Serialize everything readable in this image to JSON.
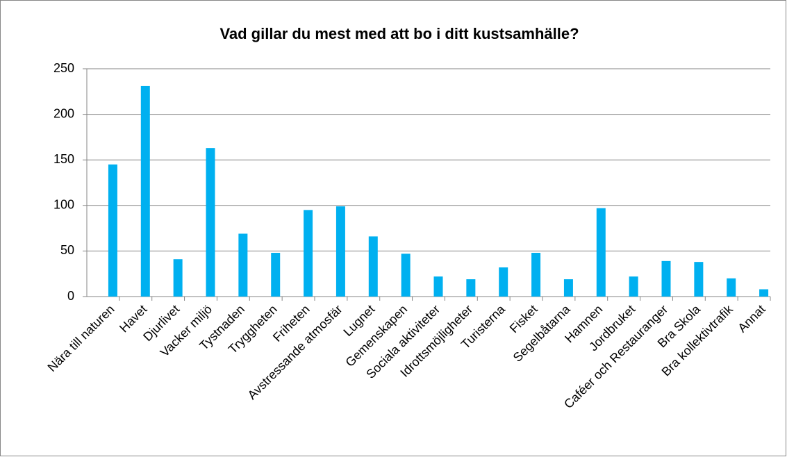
{
  "chart_data": {
    "type": "bar",
    "title": "Vad gillar du mest med att bo i ditt kustsamhälle?",
    "categories": [
      "Nära till naturen",
      "Havet",
      "Djurlivet",
      "Vacker miljö",
      "Tystnaden",
      "Tryggheten",
      "Friheten",
      "Avstressande atmosfär",
      "Lugnet",
      "Gemenskapen",
      "Sociala aktiviteter",
      "Idrottsmöjligheter",
      "Turisterna",
      "Fisket",
      "Segelbåtarna",
      "Hamnen",
      "Jordbruket",
      "Caféer och Restauranger",
      "Bra Skola",
      "Bra kollektivtrafik",
      "Annat"
    ],
    "values": [
      145,
      231,
      41,
      163,
      69,
      48,
      95,
      99,
      66,
      47,
      22,
      19,
      32,
      48,
      19,
      97,
      22,
      39,
      38,
      20,
      8
    ],
    "color": "#00b0f0",
    "ylim": [
      0,
      250
    ],
    "yticks": [
      0,
      50,
      100,
      150,
      200,
      250
    ],
    "grid": true
  }
}
